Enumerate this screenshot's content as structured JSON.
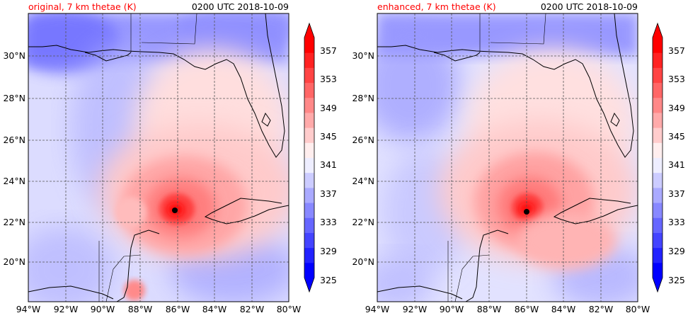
{
  "chart_data": [
    {
      "type": "heatmap",
      "title_left": "original, 7 km thetae (K)",
      "title_right": "0200 UTC 2018-10-09",
      "variable": "7 km thetae (K)",
      "x_ticks": [
        "94°W",
        "92°W",
        "90°W",
        "88°W",
        "86°W",
        "84°W",
        "82°W",
        "80°W"
      ],
      "x_tick_values": [
        -94,
        -92,
        -90,
        -88,
        -86,
        -84,
        -82,
        -80
      ],
      "y_ticks": [
        "20°N",
        "22°N",
        "24°N",
        "26°N",
        "28°N",
        "30°N"
      ],
      "y_tick_values": [
        20,
        22,
        24,
        26,
        28,
        30
      ],
      "xlim": [
        -94,
        -80
      ],
      "ylim": [
        18.1,
        32.1
      ],
      "grid": true,
      "storm_center": {
        "lon": -86.2,
        "lat": 22.6
      },
      "colorbar": {
        "ticks": [
          325,
          329,
          333,
          337,
          341,
          345,
          349,
          353,
          357
        ],
        "levels": [
          325,
          327,
          329,
          331,
          333,
          335,
          337,
          339,
          341,
          343,
          345,
          347,
          349,
          351,
          353,
          355,
          357
        ],
        "extend": "both"
      }
    },
    {
      "type": "heatmap",
      "title_left": "enhanced, 7 km thetae (K)",
      "title_right": "0200 UTC 2018-10-09",
      "variable": "7 km thetae (K)",
      "x_ticks": [
        "94°W",
        "92°W",
        "90°W",
        "88°W",
        "86°W",
        "84°W",
        "82°W",
        "80°W"
      ],
      "x_tick_values": [
        -94,
        -92,
        -90,
        -88,
        -86,
        -84,
        -82,
        -80
      ],
      "y_ticks": [
        "20°N",
        "22°N",
        "24°N",
        "26°N",
        "28°N",
        "30°N"
      ],
      "y_tick_values": [
        20,
        22,
        24,
        26,
        28,
        30
      ],
      "xlim": [
        -94,
        -80
      ],
      "ylim": [
        18.1,
        32.1
      ],
      "grid": true,
      "storm_center": {
        "lon": -86.0,
        "lat": 22.5
      },
      "colorbar": {
        "ticks": [
          325,
          329,
          333,
          337,
          341,
          345,
          349,
          353,
          357
        ],
        "levels": [
          325,
          327,
          329,
          331,
          333,
          335,
          337,
          339,
          341,
          343,
          345,
          347,
          349,
          351,
          353,
          355,
          357
        ],
        "extend": "both"
      }
    }
  ],
  "colors": {
    "cold_end": "#0000ff",
    "neutral": "#ffffff",
    "warm_end": "#ff0000",
    "title_red": "#ff0000"
  }
}
